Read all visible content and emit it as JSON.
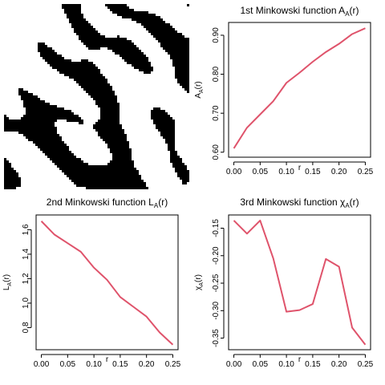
{
  "image_panel": {
    "description_visible": "binary black and white random field"
  },
  "chart_data": [
    {
      "type": "line",
      "title": "1st Minkowski function A",
      "title_sub": "A",
      "title_tail": "(r)",
      "xlabel": "r",
      "ylabel": "A",
      "ylabel_sub": "A",
      "ylabel_tail": "(r)",
      "xlim": [
        0,
        0.25
      ],
      "ylim": [
        0.6,
        0.92
      ],
      "xticks": [
        "0.00",
        "0.05",
        "0.10",
        "0.15",
        "0.20",
        "0.25"
      ],
      "yticks": [
        "0.60",
        "0.70",
        "0.80",
        "0.90"
      ],
      "ytick_values": [
        0.6,
        0.7,
        0.8,
        0.9
      ],
      "color": "#DF536B",
      "series": [
        {
          "x": [
            0.0,
            0.025,
            0.05,
            0.075,
            0.1,
            0.125,
            0.15,
            0.175,
            0.2,
            0.225,
            0.25
          ],
          "values": [
            0.61,
            0.663,
            0.697,
            0.731,
            0.778,
            0.804,
            0.832,
            0.857,
            0.878,
            0.903,
            0.918
          ]
        }
      ]
    },
    {
      "type": "line",
      "title": "2nd Minkowski function L",
      "title_sub": "A",
      "title_tail": "(r)",
      "xlabel": "r",
      "ylabel": "L",
      "ylabel_sub": "A",
      "ylabel_tail": "(r)",
      "xlim": [
        0,
        0.25
      ],
      "ylim": [
        0.66,
        1.68
      ],
      "xticks": [
        "0.00",
        "0.05",
        "0.10",
        "0.15",
        "0.20",
        "0.25"
      ],
      "yticks": [
        "0.8",
        "1.0",
        "1.2",
        "1.4",
        "1.6"
      ],
      "ytick_values": [
        0.8,
        1.0,
        1.2,
        1.4,
        1.6
      ],
      "color": "#DF536B",
      "series": [
        {
          "x": [
            0.0,
            0.025,
            0.05,
            0.075,
            0.1,
            0.125,
            0.15,
            0.175,
            0.2,
            0.225,
            0.25
          ],
          "values": [
            1.67,
            1.56,
            1.49,
            1.42,
            1.29,
            1.19,
            1.05,
            0.97,
            0.89,
            0.76,
            0.66
          ]
        }
      ]
    },
    {
      "type": "line",
      "title": "3rd Minkowski function χ",
      "title_sub": "A",
      "title_tail": "(r)",
      "xlabel": "r",
      "ylabel": "χ",
      "ylabel_sub": "A",
      "ylabel_tail": "(r)",
      "xlim": [
        0,
        0.25
      ],
      "ylim": [
        -0.362,
        -0.135
      ],
      "xticks": [
        "0.00",
        "0.05",
        "0.10",
        "0.15",
        "0.20",
        "0.25"
      ],
      "yticks": [
        "-0.35",
        "-0.30",
        "-0.25",
        "-0.20",
        "-0.15"
      ],
      "ytick_values": [
        -0.35,
        -0.3,
        -0.25,
        -0.2,
        -0.15
      ],
      "color": "#DF536B",
      "series": [
        {
          "x": [
            0.0,
            0.025,
            0.05,
            0.075,
            0.1,
            0.125,
            0.15,
            0.175,
            0.2,
            0.225,
            0.25
          ],
          "values": [
            -0.136,
            -0.16,
            -0.136,
            -0.205,
            -0.302,
            -0.299,
            -0.288,
            -0.206,
            -0.22,
            -0.331,
            -0.362
          ]
        }
      ]
    }
  ]
}
